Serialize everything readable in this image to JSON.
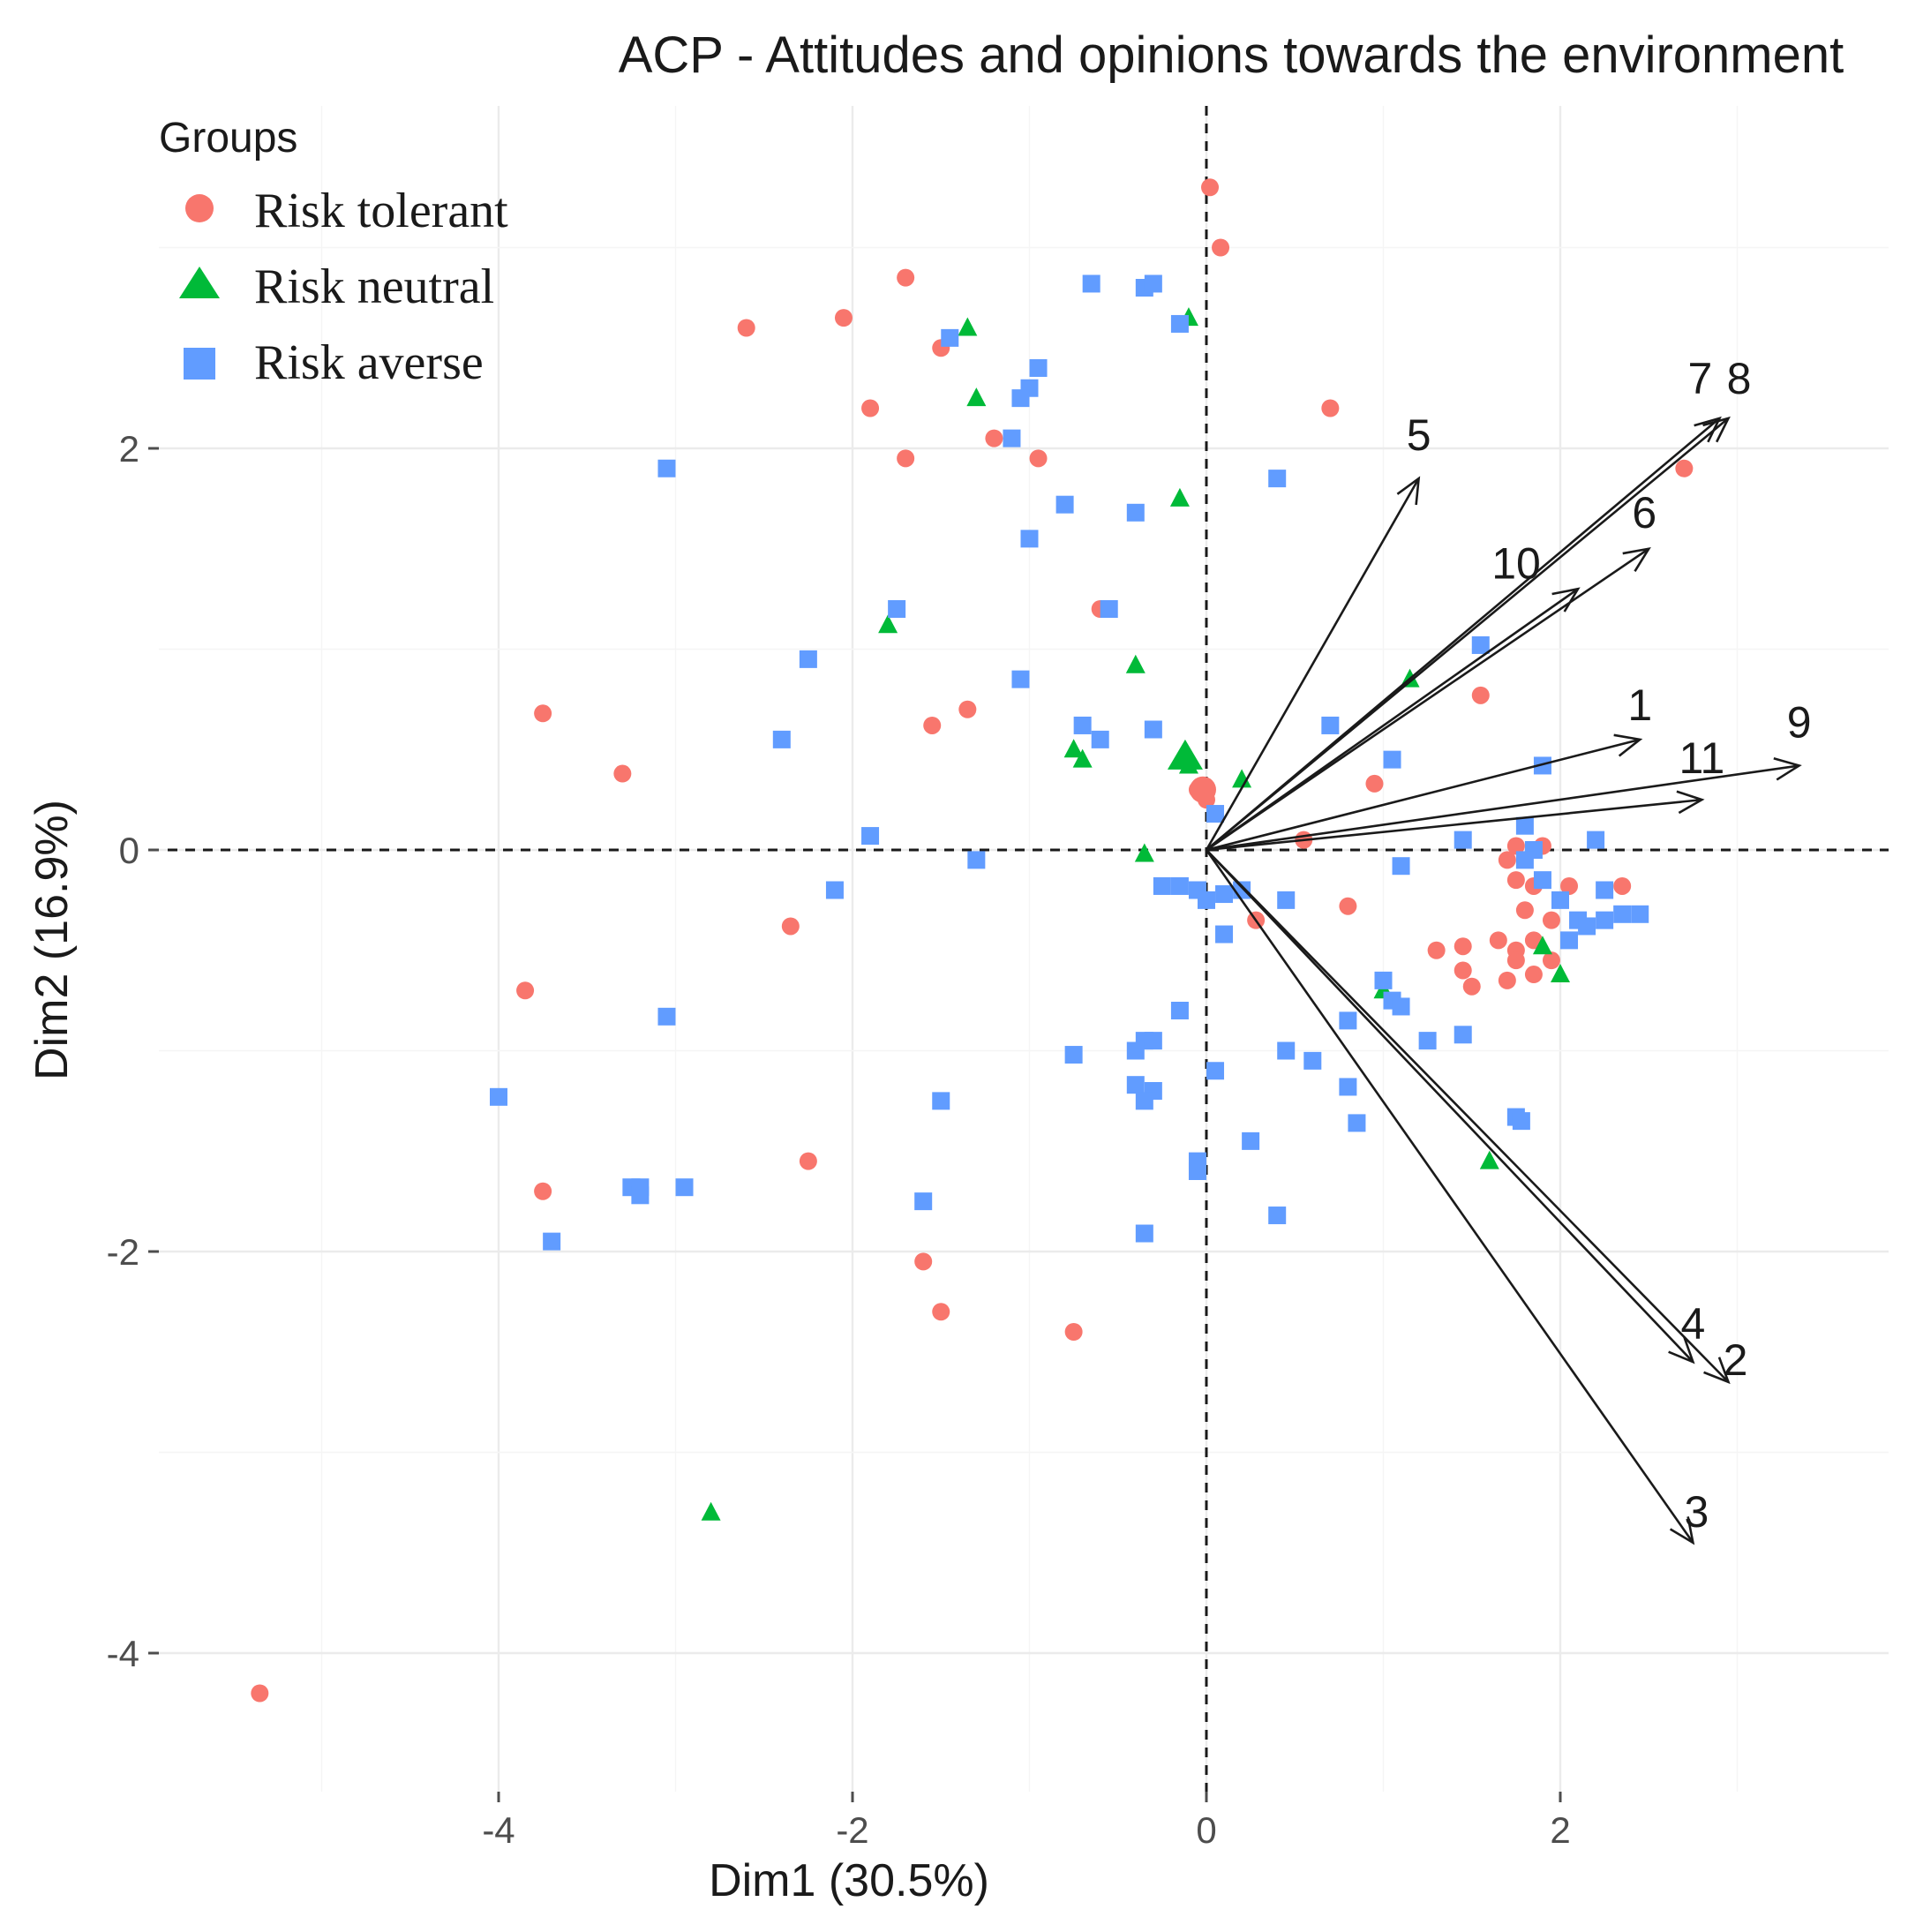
{
  "chart_data": {
    "type": "scatter",
    "title": "ACP - Attitudes and opinions towards the environment",
    "xlabel": "Dim1 (30.5%)",
    "ylabel": "Dim2 (16.9%)",
    "xlim": [
      -5.5,
      3.8
    ],
    "ylim": [
      -4.7,
      3.7
    ],
    "x_ticks": [
      -4,
      -2,
      0,
      2
    ],
    "y_ticks": [
      -4,
      -2,
      0,
      2
    ],
    "grid": true,
    "legend": {
      "title": "Groups",
      "position": "top-left",
      "entries": [
        {
          "label": "Risk tolerant",
          "shape": "circle",
          "color": "#F8766D"
        },
        {
          "label": "Risk neutral",
          "shape": "triangle",
          "color": "#00BA38"
        },
        {
          "label": "Risk averse",
          "shape": "square",
          "color": "#619CFF"
        }
      ]
    },
    "series": [
      {
        "name": "Risk tolerant",
        "shape": "circle",
        "color": "#F8766D",
        "points": [
          [
            0.02,
            3.3
          ],
          [
            0.08,
            3.0
          ],
          [
            -1.7,
            2.85
          ],
          [
            -2.6,
            2.6
          ],
          [
            -2.05,
            2.65
          ],
          [
            -1.5,
            2.5
          ],
          [
            -1.9,
            2.2
          ],
          [
            -1.7,
            1.95
          ],
          [
            -1.2,
            2.05
          ],
          [
            -0.95,
            1.95
          ],
          [
            0.7,
            2.2
          ],
          [
            2.7,
            1.9
          ],
          [
            -0.6,
            1.2
          ],
          [
            -1.35,
            0.7
          ],
          [
            -1.55,
            0.62
          ],
          [
            -3.75,
            0.68
          ],
          [
            -3.3,
            0.38
          ],
          [
            1.55,
            0.77
          ],
          [
            0.95,
            0.33
          ],
          [
            0.55,
            0.05
          ],
          [
            1.75,
            0.02
          ],
          [
            1.9,
            0.02
          ],
          [
            -0.05,
            0.3
          ],
          [
            0.0,
            0.25
          ],
          [
            0.28,
            -0.35
          ],
          [
            0.8,
            -0.28
          ],
          [
            -2.35,
            -0.38
          ],
          [
            -3.85,
            -0.7
          ],
          [
            1.7,
            -0.05
          ],
          [
            1.85,
            -0.18
          ],
          [
            1.75,
            -0.15
          ],
          [
            2.05,
            -0.18
          ],
          [
            2.35,
            -0.18
          ],
          [
            1.8,
            -0.3
          ],
          [
            1.95,
            -0.35
          ],
          [
            1.65,
            -0.45
          ],
          [
            1.3,
            -0.5
          ],
          [
            1.45,
            -0.48
          ],
          [
            1.45,
            -0.6
          ],
          [
            1.75,
            -0.5
          ],
          [
            1.75,
            -0.55
          ],
          [
            1.85,
            -0.45
          ],
          [
            1.95,
            -0.55
          ],
          [
            1.5,
            -0.68
          ],
          [
            1.7,
            -0.65
          ],
          [
            1.85,
            -0.62
          ],
          [
            -2.25,
            -1.55
          ],
          [
            -3.75,
            -1.7
          ],
          [
            -1.6,
            -2.05
          ],
          [
            -1.5,
            -2.3
          ],
          [
            -0.75,
            -2.4
          ],
          [
            -5.35,
            -4.2
          ]
        ]
      },
      {
        "name": "Risk neutral",
        "shape": "triangle",
        "color": "#00BA38",
        "points": [
          [
            -0.1,
            2.65
          ],
          [
            -1.35,
            2.6
          ],
          [
            -1.3,
            2.25
          ],
          [
            -0.15,
            1.75
          ],
          [
            -1.8,
            1.12
          ],
          [
            -0.4,
            0.92
          ],
          [
            -0.75,
            0.5
          ],
          [
            -0.7,
            0.45
          ],
          [
            -0.12,
            0.45
          ],
          [
            -0.1,
            0.42
          ],
          [
            0.2,
            0.35
          ],
          [
            1.15,
            0.85
          ],
          [
            -0.35,
            -0.02
          ],
          [
            1.0,
            -0.7
          ],
          [
            1.9,
            -0.48
          ],
          [
            2.0,
            -0.62
          ],
          [
            1.6,
            -1.55
          ],
          [
            -2.8,
            -3.3
          ]
        ]
      },
      {
        "name": "Risk averse",
        "shape": "square",
        "color": "#619CFF",
        "points": [
          [
            -0.65,
            2.82
          ],
          [
            -0.35,
            2.8
          ],
          [
            -0.3,
            2.82
          ],
          [
            -0.15,
            2.62
          ],
          [
            -1.45,
            2.55
          ],
          [
            -0.95,
            2.4
          ],
          [
            -1.0,
            2.3
          ],
          [
            -1.05,
            2.25
          ],
          [
            -1.1,
            2.05
          ],
          [
            -3.05,
            1.9
          ],
          [
            0.4,
            1.85
          ],
          [
            -0.8,
            1.72
          ],
          [
            -0.4,
            1.68
          ],
          [
            -1.0,
            1.55
          ],
          [
            -1.75,
            1.2
          ],
          [
            -0.55,
            1.2
          ],
          [
            1.55,
            1.02
          ],
          [
            -2.25,
            0.95
          ],
          [
            -1.05,
            0.85
          ],
          [
            0.7,
            0.62
          ],
          [
            -0.7,
            0.62
          ],
          [
            -0.6,
            0.55
          ],
          [
            -0.3,
            0.6
          ],
          [
            -2.4,
            0.55
          ],
          [
            1.05,
            0.45
          ],
          [
            1.9,
            0.42
          ],
          [
            0.05,
            0.18
          ],
          [
            1.8,
            0.12
          ],
          [
            1.45,
            0.05
          ],
          [
            2.2,
            0.05
          ],
          [
            -1.9,
            0.07
          ],
          [
            -1.3,
            -0.05
          ],
          [
            -2.1,
            -0.2
          ],
          [
            1.85,
            0.0
          ],
          [
            1.8,
            -0.05
          ],
          [
            1.1,
            -0.08
          ],
          [
            2.0,
            -0.25
          ],
          [
            2.25,
            -0.2
          ],
          [
            1.9,
            -0.15
          ],
          [
            -0.25,
            -0.18
          ],
          [
            -0.15,
            -0.18
          ],
          [
            -0.05,
            -0.2
          ],
          [
            0.0,
            -0.25
          ],
          [
            0.1,
            -0.22
          ],
          [
            0.2,
            -0.2
          ],
          [
            0.45,
            -0.25
          ],
          [
            0.1,
            -0.42
          ],
          [
            2.1,
            -0.35
          ],
          [
            2.15,
            -0.38
          ],
          [
            2.25,
            -0.35
          ],
          [
            2.35,
            -0.32
          ],
          [
            2.45,
            -0.32
          ],
          [
            2.05,
            -0.45
          ],
          [
            1.0,
            -0.65
          ],
          [
            1.05,
            -0.75
          ],
          [
            1.1,
            -0.78
          ],
          [
            0.8,
            -0.85
          ],
          [
            1.25,
            -0.95
          ],
          [
            1.45,
            -0.92
          ],
          [
            -3.05,
            -0.83
          ],
          [
            -0.15,
            -0.8
          ],
          [
            -0.3,
            -0.95
          ],
          [
            -0.35,
            -0.95
          ],
          [
            -0.4,
            -1.0
          ],
          [
            -0.75,
            -1.02
          ],
          [
            0.45,
            -1.0
          ],
          [
            0.6,
            -1.05
          ],
          [
            0.05,
            -1.1
          ],
          [
            0.8,
            -1.18
          ],
          [
            -0.4,
            -1.17
          ],
          [
            -0.3,
            -1.2
          ],
          [
            -0.35,
            -1.25
          ],
          [
            -1.5,
            -1.25
          ],
          [
            -4.0,
            -1.23
          ],
          [
            0.85,
            -1.36
          ],
          [
            1.75,
            -1.33
          ],
          [
            1.78,
            -1.35
          ],
          [
            0.25,
            -1.45
          ],
          [
            -0.05,
            -1.55
          ],
          [
            -0.05,
            -1.6
          ],
          [
            -3.2,
            -1.68
          ],
          [
            -3.25,
            -1.68
          ],
          [
            -3.2,
            -1.72
          ],
          [
            -2.95,
            -1.68
          ],
          [
            -1.6,
            -1.75
          ],
          [
            0.4,
            -1.82
          ],
          [
            -0.35,
            -1.91
          ],
          [
            -3.7,
            -1.95
          ]
        ]
      }
    ],
    "variables": [
      {
        "name": "1",
        "x": 2.45,
        "y": 0.55
      },
      {
        "name": "2",
        "x": 2.95,
        "y": -2.65
      },
      {
        "name": "3",
        "x": 2.75,
        "y": -3.45
      },
      {
        "name": "4",
        "x": 2.75,
        "y": -2.55
      },
      {
        "name": "5",
        "x": 1.2,
        "y": 1.85
      },
      {
        "name": "6",
        "x": 2.5,
        "y": 1.5
      },
      {
        "name": "7",
        "x": 2.9,
        "y": 2.15
      },
      {
        "name": "8",
        "x": 2.95,
        "y": 2.15
      },
      {
        "name": "9",
        "x": 3.35,
        "y": 0.42
      },
      {
        "name": "10",
        "x": 2.1,
        "y": 1.3
      },
      {
        "name": "11",
        "x": 2.8,
        "y": 0.25
      }
    ]
  }
}
